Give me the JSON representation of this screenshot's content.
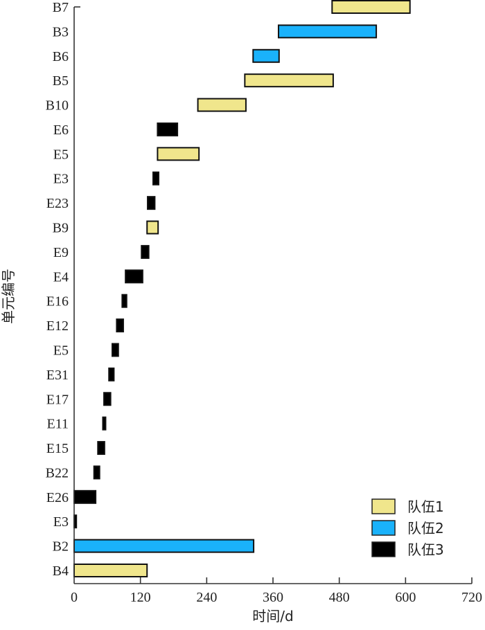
{
  "chart_data": {
    "type": "bar",
    "orientation": "horizontal-gantt",
    "title": "",
    "xlabel": "时间/d",
    "ylabel": "单元编号",
    "xlim": [
      0,
      720
    ],
    "xticks": [
      "0",
      "120",
      "240",
      "360",
      "480",
      "600",
      "720"
    ],
    "grid": false,
    "legend_position": "bottom-right",
    "teams": [
      {
        "key": "t1",
        "name": "队伍1",
        "color": "#f0e68c"
      },
      {
        "key": "t2",
        "name": "队伍2",
        "color": "#1ab2fb"
      },
      {
        "key": "t3",
        "name": "队伍3",
        "color": "#000000"
      }
    ],
    "tasks": [
      {
        "label": "B7",
        "team": "t1",
        "start": 467,
        "end": 608
      },
      {
        "label": "B3",
        "team": "t2",
        "start": 370,
        "end": 547
      },
      {
        "label": "B6",
        "team": "t2",
        "start": 324,
        "end": 371
      },
      {
        "label": "B5",
        "team": "t1",
        "start": 309,
        "end": 469
      },
      {
        "label": "B10",
        "team": "t1",
        "start": 224,
        "end": 311
      },
      {
        "label": "E6",
        "team": "t3",
        "start": 151,
        "end": 187
      },
      {
        "label": "E5",
        "team": "t1",
        "start": 151,
        "end": 226
      },
      {
        "label": "E3",
        "team": "t3",
        "start": 143,
        "end": 153
      },
      {
        "label": "E23",
        "team": "t3",
        "start": 133,
        "end": 146
      },
      {
        "label": "B9",
        "team": "t1",
        "start": 132,
        "end": 152
      },
      {
        "label": "E9",
        "team": "t3",
        "start": 122,
        "end": 135
      },
      {
        "label": "E4",
        "team": "t3",
        "start": 93,
        "end": 124
      },
      {
        "label": "E16",
        "team": "t3",
        "start": 87,
        "end": 95
      },
      {
        "label": "E12",
        "team": "t3",
        "start": 77,
        "end": 89
      },
      {
        "label": "E5",
        "team": "t3",
        "start": 69,
        "end": 80
      },
      {
        "label": "E31",
        "team": "t3",
        "start": 63,
        "end": 72
      },
      {
        "label": "E17",
        "team": "t3",
        "start": 54,
        "end": 66
      },
      {
        "label": "E11",
        "team": "t3",
        "start": 52,
        "end": 57
      },
      {
        "label": "E15",
        "team": "t3",
        "start": 43,
        "end": 55
      },
      {
        "label": "B22",
        "team": "t3",
        "start": 36,
        "end": 46
      },
      {
        "label": "E26",
        "team": "t3",
        "start": 0,
        "end": 39
      },
      {
        "label": "E3",
        "team": "t3",
        "start": 0,
        "end": 4
      },
      {
        "label": "B2",
        "team": "t2",
        "start": 0,
        "end": 325
      },
      {
        "label": "B4",
        "team": "t1",
        "start": 0,
        "end": 132
      }
    ]
  }
}
